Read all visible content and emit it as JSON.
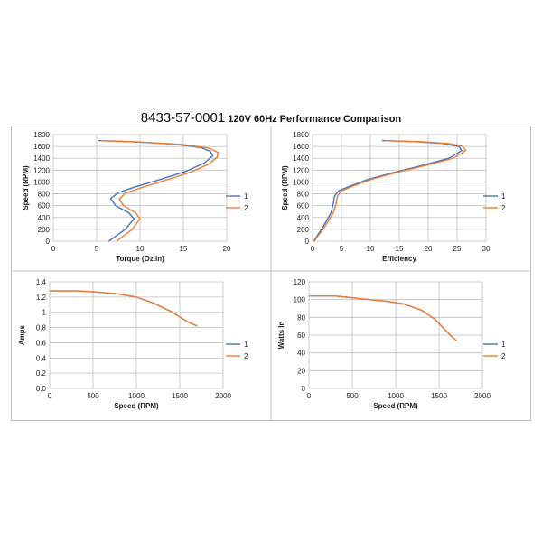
{
  "title": {
    "part_number": "8433-57-0001",
    "subtitle": "120V 60Hz Performance Comparison"
  },
  "colors": {
    "series1": "#4472C4",
    "series2": "#ED7D31",
    "grid": "#BFBFBF",
    "border": "#BFBFBF"
  },
  "chart_data": [
    {
      "type": "line",
      "xlabel": "Torque (Oz.In)",
      "ylabel": "Speed (RPM)",
      "xlim": [
        0,
        20
      ],
      "xticks": [
        0,
        5,
        10,
        15,
        20
      ],
      "ylim": [
        0,
        1800
      ],
      "yticks": [
        0,
        200,
        400,
        600,
        800,
        1000,
        1200,
        1400,
        1600,
        1800
      ],
      "grid": true,
      "legend": "right",
      "series": [
        {
          "name": "1",
          "x": [
            5.2,
            9,
            14,
            17,
            18.1,
            18.4,
            17.4,
            15.3,
            12.5,
            9.5,
            7.5,
            6.6,
            7.2,
            8.7,
            9.3,
            8.3,
            6.4
          ],
          "y": [
            1700,
            1680,
            1640,
            1580,
            1520,
            1440,
            1320,
            1180,
            1050,
            920,
            820,
            720,
            600,
            480,
            380,
            200,
            0
          ]
        },
        {
          "name": "2",
          "x": [
            5.4,
            9.5,
            15,
            18,
            19,
            18.9,
            17.9,
            15.9,
            13.2,
            10.3,
            8.3,
            7.6,
            8.1,
            9.5,
            10,
            9.1,
            7.3
          ],
          "y": [
            1700,
            1680,
            1630,
            1570,
            1500,
            1420,
            1300,
            1170,
            1040,
            910,
            810,
            710,
            600,
            480,
            380,
            200,
            0
          ]
        }
      ]
    },
    {
      "type": "line",
      "xlabel": "Efficiency",
      "ylabel": "Speed (RPM)",
      "xlim": [
        0,
        30
      ],
      "xticks": [
        0,
        5,
        10,
        15,
        20,
        25,
        30
      ],
      "ylim": [
        0,
        1800
      ],
      "yticks": [
        0,
        200,
        400,
        600,
        800,
        1000,
        1200,
        1400,
        1600,
        1800
      ],
      "grid": true,
      "legend": "right",
      "series": [
        {
          "name": "1",
          "x": [
            12,
            18,
            22.5,
            25.3,
            25.8,
            23.6,
            19,
            14,
            9.5,
            6.5,
            4.5,
            3.8,
            3.6,
            3.2,
            1.8,
            0.2
          ],
          "y": [
            1700,
            1680,
            1650,
            1600,
            1530,
            1400,
            1280,
            1160,
            1040,
            930,
            850,
            760,
            640,
            480,
            240,
            0
          ]
        },
        {
          "name": "2",
          "x": [
            12.5,
            19,
            23.5,
            26,
            26.5,
            24.3,
            19.6,
            14.5,
            10,
            7,
            5,
            4.3,
            4.1,
            3.6,
            2.1,
            0.3
          ],
          "y": [
            1700,
            1680,
            1650,
            1600,
            1530,
            1400,
            1280,
            1160,
            1040,
            930,
            850,
            760,
            640,
            480,
            240,
            0
          ]
        }
      ]
    },
    {
      "type": "line",
      "xlabel": "Speed (RPM)",
      "ylabel": "Amps",
      "xlim": [
        0,
        2000
      ],
      "xticks": [
        0,
        500,
        1000,
        1500,
        2000
      ],
      "ylim": [
        0,
        1.4
      ],
      "yticks": [
        0.0,
        0.2,
        0.4,
        0.6,
        0.8,
        1.0,
        1.2,
        1.4
      ],
      "ytick_labels": [
        "0.0",
        "0.2",
        "0.4",
        "0.6",
        "0.8",
        "1",
        "1.2",
        "1.4"
      ],
      "grid": true,
      "legend": "right",
      "series": [
        {
          "name": "1",
          "x": [
            0,
            300,
            500,
            800,
            1000,
            1200,
            1400,
            1600,
            1700
          ],
          "y": [
            1.28,
            1.28,
            1.27,
            1.24,
            1.2,
            1.12,
            1.01,
            0.87,
            0.82
          ]
        },
        {
          "name": "2",
          "x": [
            0,
            300,
            500,
            800,
            1000,
            1200,
            1400,
            1600,
            1700
          ],
          "y": [
            1.28,
            1.28,
            1.27,
            1.24,
            1.2,
            1.12,
            1.01,
            0.87,
            0.82
          ]
        }
      ]
    },
    {
      "type": "line",
      "xlabel": "Speed (RPM)",
      "ylabel": "Watts In",
      "xlim": [
        0,
        2000
      ],
      "xticks": [
        0,
        500,
        1000,
        1500,
        2000
      ],
      "ylim": [
        0,
        120
      ],
      "yticks": [
        0,
        20,
        40,
        60,
        80,
        100,
        120
      ],
      "grid": true,
      "legend": "right",
      "series": [
        {
          "name": "1",
          "x": [
            0,
            300,
            600,
            900,
            1100,
            1300,
            1450,
            1550,
            1650,
            1700
          ],
          "y": [
            104,
            104,
            101,
            98,
            95,
            88,
            78,
            68,
            58,
            54
          ]
        },
        {
          "name": "2",
          "x": [
            0,
            300,
            600,
            900,
            1100,
            1300,
            1450,
            1550,
            1650,
            1700
          ],
          "y": [
            104,
            104,
            101,
            98,
            95,
            88,
            78,
            68,
            58,
            54
          ]
        }
      ]
    }
  ]
}
